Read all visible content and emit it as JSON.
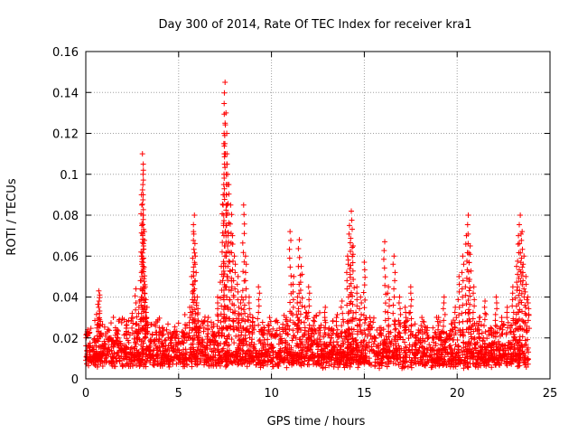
{
  "chart_data": {
    "type": "scatter",
    "title": "Day 300 of 2014, Rate Of TEC Index for receiver kra1",
    "xlabel": "GPS time / hours",
    "ylabel": "ROTI / TECUs",
    "xlim": [
      0,
      25
    ],
    "ylim": [
      0,
      0.16
    ],
    "xticks": [
      0,
      5,
      10,
      15,
      20,
      25
    ],
    "yticks": [
      0,
      0.02,
      0.04,
      0.06,
      0.08,
      0.1,
      0.12,
      0.14,
      0.16
    ],
    "xtick_labels": [
      "0",
      "5",
      "10",
      "15",
      "20",
      "25"
    ],
    "ytick_labels": [
      "0",
      "0.02",
      "0.04",
      "0.06",
      "0.08",
      "0.1",
      "0.12",
      "0.14",
      "0.16"
    ],
    "grid": true,
    "marker": "+",
    "color": "#ff0000",
    "series": [
      {
        "name": "ROTI",
        "x": [
          0.1,
          0.2,
          0.3,
          0.5,
          0.7,
          0.75,
          0.8,
          1.0,
          1.3,
          1.6,
          1.9,
          2.2,
          2.5,
          2.7,
          2.9,
          3.0,
          3.0,
          3.05,
          3.1,
          3.1,
          3.15,
          3.2,
          3.2,
          3.3,
          3.5,
          3.8,
          4.2,
          4.6,
          5.0,
          5.3,
          5.6,
          5.7,
          5.8,
          5.85,
          5.9,
          6.0,
          6.1,
          6.3,
          6.6,
          6.9,
          7.1,
          7.3,
          7.4,
          7.45,
          7.5,
          7.55,
          7.6,
          7.7,
          7.8,
          7.9,
          8.0,
          8.2,
          8.4,
          8.5,
          8.6,
          8.8,
          9.0,
          9.3,
          9.6,
          9.9,
          10.2,
          10.5,
          10.8,
          11.0,
          11.2,
          11.4,
          11.5,
          11.6,
          11.8,
          12.0,
          12.3,
          12.6,
          12.9,
          13.2,
          13.5,
          13.8,
          14.1,
          14.2,
          14.3,
          14.4,
          14.6,
          14.8,
          15.0,
          15.3,
          15.6,
          15.9,
          16.1,
          16.3,
          16.6,
          16.9,
          17.2,
          17.5,
          17.8,
          18.1,
          18.4,
          18.7,
          19.0,
          19.3,
          19.6,
          19.9,
          20.1,
          20.3,
          20.5,
          20.6,
          20.7,
          20.9,
          21.2,
          21.5,
          21.8,
          22.1,
          22.4,
          22.7,
          23.0,
          23.2,
          23.3,
          23.4,
          23.5,
          23.6,
          23.7,
          23.8
        ],
        "y": [
          0.024,
          0.012,
          0.008,
          0.018,
          0.043,
          0.041,
          0.022,
          0.015,
          0.02,
          0.025,
          0.014,
          0.028,
          0.032,
          0.044,
          0.038,
          0.06,
          0.09,
          0.11,
          0.102,
          0.08,
          0.072,
          0.045,
          0.03,
          0.035,
          0.018,
          0.012,
          0.016,
          0.02,
          0.014,
          0.022,
          0.035,
          0.05,
          0.072,
          0.08,
          0.06,
          0.04,
          0.025,
          0.018,
          0.03,
          0.022,
          0.04,
          0.055,
          0.09,
          0.12,
          0.145,
          0.13,
          0.11,
          0.095,
          0.085,
          0.07,
          0.06,
          0.05,
          0.04,
          0.085,
          0.06,
          0.04,
          0.03,
          0.045,
          0.025,
          0.03,
          0.022,
          0.018,
          0.03,
          0.072,
          0.05,
          0.04,
          0.068,
          0.055,
          0.035,
          0.045,
          0.03,
          0.025,
          0.035,
          0.02,
          0.03,
          0.038,
          0.06,
          0.075,
          0.082,
          0.065,
          0.045,
          0.04,
          0.057,
          0.03,
          0.02,
          0.025,
          0.067,
          0.045,
          0.06,
          0.04,
          0.035,
          0.045,
          0.02,
          0.03,
          0.025,
          0.02,
          0.03,
          0.04,
          0.022,
          0.035,
          0.05,
          0.06,
          0.07,
          0.08,
          0.065,
          0.045,
          0.03,
          0.038,
          0.025,
          0.04,
          0.03,
          0.035,
          0.045,
          0.055,
          0.07,
          0.08,
          0.072,
          0.06,
          0.05,
          0.04
        ],
        "baseline_min": 0.005,
        "baseline_max": 0.03
      }
    ]
  }
}
